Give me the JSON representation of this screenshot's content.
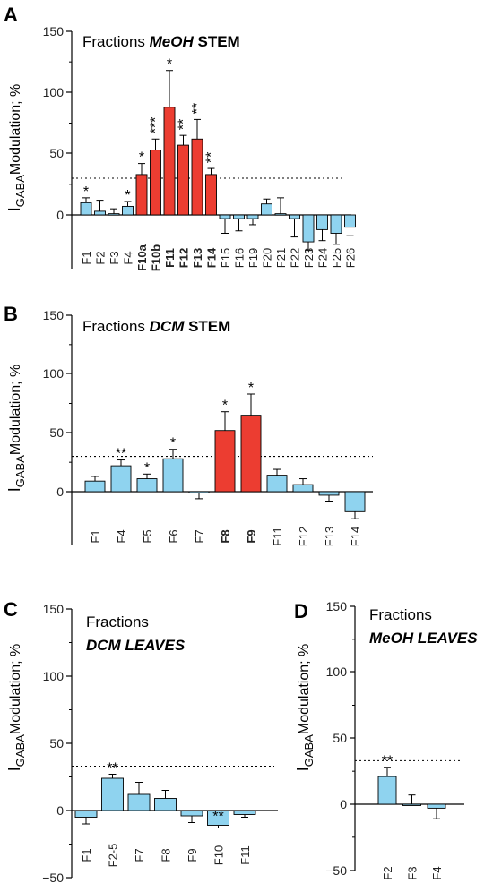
{
  "colors": {
    "blue": "#8fd3ef",
    "red": "#ec3d31",
    "axis": "#000000"
  },
  "chart_data": [
    {
      "type": "bar",
      "panel": "A",
      "title_plain": "Fractions ",
      "title_italic": "MeOH",
      "title_rest": " STEM",
      "ylabel_main": "I",
      "ylabel_sub": "GABA",
      "ylabel_rest": "Modulation; %",
      "ylim": [
        -50,
        150
      ],
      "yticks": [
        "150",
        "100",
        "50",
        "0"
      ],
      "threshold": 30,
      "categories": [
        "F1",
        "F2",
        "F3",
        "F4",
        "F10a",
        "F10b",
        "F11",
        "F12",
        "F13",
        "F14",
        "F15",
        "F16",
        "F19",
        "F20",
        "F21",
        "F22",
        "F23",
        "F24",
        "F25",
        "F26"
      ],
      "values": [
        10,
        3,
        1,
        7,
        33,
        53,
        88,
        57,
        62,
        33,
        -3,
        -3,
        -3,
        9,
        1,
        -3,
        -22,
        -12,
        -15,
        -10
      ],
      "errors": [
        4,
        9,
        4,
        4,
        9,
        9,
        30,
        8,
        16,
        5,
        12,
        10,
        5,
        4,
        13,
        15,
        7,
        9,
        9,
        7
      ],
      "highlight": [
        false,
        false,
        false,
        false,
        true,
        true,
        true,
        true,
        true,
        true,
        false,
        false,
        false,
        false,
        false,
        false,
        false,
        false,
        false,
        false
      ],
      "stars": [
        "*",
        "",
        "",
        "*",
        "*",
        "***",
        "*",
        "**",
        "**",
        "**",
        "",
        "",
        "",
        "",
        "",
        "",
        "",
        "",
        "",
        ""
      ]
    },
    {
      "type": "bar",
      "panel": "B",
      "title_plain": "Fractions ",
      "title_italic": "DCM",
      "title_rest": " STEM",
      "ylabel_main": "I",
      "ylabel_sub": "GABA",
      "ylabel_rest": "Modulation; %",
      "ylim": [
        -50,
        150
      ],
      "yticks": [
        "150",
        "100",
        "50",
        "0"
      ],
      "threshold": 30,
      "categories": [
        "F1",
        "F4",
        "F5",
        "F6",
        "F7",
        "F8",
        "F9",
        "F11",
        "F12",
        "F13",
        "F14"
      ],
      "values": [
        9,
        22,
        11,
        28,
        -1,
        52,
        65,
        14,
        6,
        -3,
        -17
      ],
      "errors": [
        4,
        5,
        4,
        8,
        5,
        16,
        18,
        5,
        5,
        5,
        6
      ],
      "highlight": [
        false,
        false,
        false,
        false,
        false,
        true,
        true,
        false,
        false,
        false,
        false
      ],
      "stars": [
        "",
        "**",
        "*",
        "*",
        "",
        "*",
        "*",
        "",
        "",
        "",
        ""
      ]
    },
    {
      "type": "bar",
      "panel": "C",
      "title_plain": "Fractions",
      "title_italic": "DCM LEAVES",
      "title_rest": "",
      "ylabel_main": "I",
      "ylabel_sub": "GABA",
      "ylabel_rest": "Modulation; %",
      "ylim": [
        -50,
        150
      ],
      "yticks": [
        "150",
        "100",
        "50",
        "0",
        "−50"
      ],
      "threshold": 33,
      "categories": [
        "F1",
        "F2-5",
        "F7",
        "F8",
        "F9",
        "F10",
        "F11"
      ],
      "values": [
        -5,
        24,
        12,
        9,
        -4,
        -11,
        -3
      ],
      "errors": [
        5,
        3,
        9,
        6,
        5,
        2,
        2
      ],
      "highlight": [
        false,
        false,
        false,
        false,
        false,
        false,
        false
      ],
      "stars": [
        "",
        "**",
        "",
        "",
        "",
        "**",
        ""
      ]
    },
    {
      "type": "bar",
      "panel": "D",
      "title_plain": "Fractions",
      "title_italic": "MeOH LEAVES",
      "title_rest": "",
      "ylabel_main": "I",
      "ylabel_sub": "GABA",
      "ylabel_rest": "Modulation; %",
      "ylim": [
        -50,
        150
      ],
      "yticks": [
        "150",
        "100",
        "50",
        "0",
        "−50"
      ],
      "threshold": 33,
      "categories": [
        "F2",
        "F3",
        "F4"
      ],
      "values": [
        21,
        0,
        -3
      ],
      "errors": [
        7,
        7,
        8
      ],
      "highlight": [
        false,
        false,
        false
      ],
      "stars": [
        "**",
        "",
        ""
      ]
    }
  ]
}
